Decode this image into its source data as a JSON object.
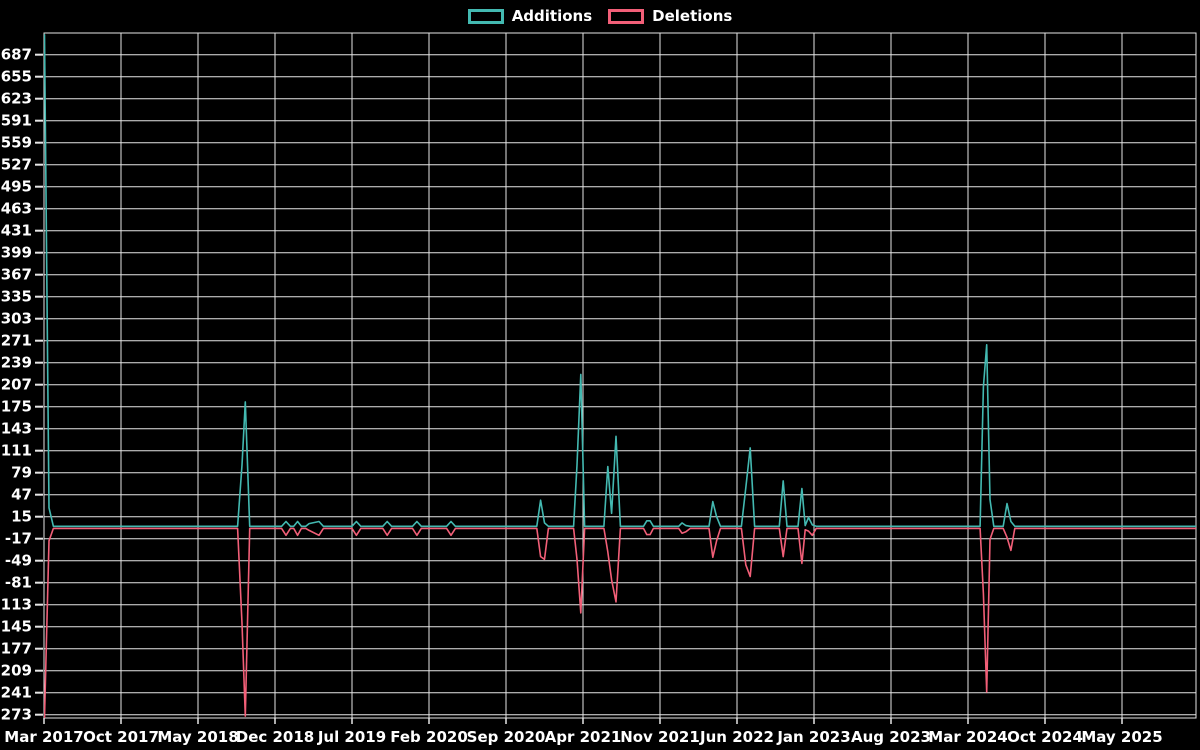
{
  "legend": {
    "items": [
      {
        "label": "Additions",
        "color": "#43b9b1"
      },
      {
        "label": "Deletions",
        "color": "#f25f78"
      }
    ]
  },
  "chart_data": {
    "type": "line",
    "title": "",
    "background": "#000000",
    "grid": true,
    "grid_color": "#e6e6e6",
    "legend_position": "top-center",
    "x_axis": {
      "tick_labels": [
        "Mar 2017",
        "Oct 2017",
        "May 2018",
        "Dec 2018",
        "Jul 2019",
        "Feb 2020",
        "Sep 2020",
        "Apr 2021",
        "Nov 2021",
        "Jun 2022",
        "Jan 2023",
        "Aug 2023",
        "Mar 2024",
        "Oct 2024",
        "May 2025"
      ],
      "tick_month_index": [
        0,
        7,
        14,
        21,
        28,
        35,
        42,
        49,
        56,
        63,
        70,
        77,
        84,
        91,
        98
      ],
      "start_month": "Mar 2017",
      "end_month_index": 104.7
    },
    "y_axis": {
      "tick_values": [
        687,
        655,
        623,
        591,
        559,
        527,
        495,
        463,
        431,
        399,
        367,
        335,
        303,
        271,
        239,
        207,
        175,
        143,
        111,
        79,
        47,
        15,
        -17,
        -49,
        -81,
        -113,
        -145,
        -177,
        -209,
        -241,
        -273
      ],
      "max": 687,
      "min": -273,
      "step": 32
    },
    "series": [
      {
        "name": "Additions",
        "color": "#43b9b1",
        "points": [
          [
            0.05,
            716
          ],
          [
            0.45,
            28
          ],
          [
            0.85,
            1
          ],
          [
            17.6,
            1
          ],
          [
            18.0,
            90
          ],
          [
            18.3,
            182
          ],
          [
            18.7,
            1
          ],
          [
            21.6,
            1
          ],
          [
            22.0,
            8
          ],
          [
            22.4,
            1
          ],
          [
            22.7,
            1
          ],
          [
            23.05,
            8
          ],
          [
            23.4,
            1
          ],
          [
            23.8,
            1
          ],
          [
            24.1,
            5
          ],
          [
            25.0,
            8
          ],
          [
            25.4,
            1
          ],
          [
            28.0,
            1
          ],
          [
            28.4,
            8
          ],
          [
            28.8,
            1
          ],
          [
            30.8,
            1
          ],
          [
            31.2,
            8
          ],
          [
            31.6,
            1
          ],
          [
            33.5,
            1
          ],
          [
            33.9,
            8
          ],
          [
            34.3,
            1
          ],
          [
            36.6,
            1
          ],
          [
            37.0,
            8
          ],
          [
            37.4,
            1
          ],
          [
            44.8,
            1
          ],
          [
            45.15,
            39
          ],
          [
            45.5,
            6
          ],
          [
            45.85,
            1
          ],
          [
            48.15,
            1
          ],
          [
            48.45,
            90
          ],
          [
            48.8,
            222
          ],
          [
            49.15,
            1
          ],
          [
            50.9,
            1
          ],
          [
            51.25,
            88
          ],
          [
            51.6,
            20
          ],
          [
            52.0,
            132
          ],
          [
            52.4,
            1
          ],
          [
            54.5,
            1
          ],
          [
            54.8,
            9
          ],
          [
            55.1,
            9
          ],
          [
            55.4,
            1
          ],
          [
            57.7,
            1
          ],
          [
            58.0,
            6
          ],
          [
            58.35,
            2
          ],
          [
            58.75,
            1
          ],
          [
            60.45,
            1
          ],
          [
            60.8,
            37
          ],
          [
            61.15,
            15
          ],
          [
            61.5,
            1
          ],
          [
            63.4,
            1
          ],
          [
            63.8,
            57
          ],
          [
            64.2,
            115
          ],
          [
            64.6,
            1
          ],
          [
            66.85,
            1
          ],
          [
            67.2,
            67
          ],
          [
            67.55,
            1
          ],
          [
            68.55,
            1
          ],
          [
            68.9,
            56
          ],
          [
            69.2,
            2
          ],
          [
            69.5,
            14
          ],
          [
            69.85,
            3
          ],
          [
            70.2,
            1
          ],
          [
            85.1,
            1
          ],
          [
            85.4,
            204
          ],
          [
            85.7,
            265
          ],
          [
            86.0,
            40
          ],
          [
            86.35,
            1
          ],
          [
            87.2,
            1
          ],
          [
            87.55,
            34
          ],
          [
            87.9,
            8
          ],
          [
            88.25,
            1
          ],
          [
            104.7,
            1
          ]
        ]
      },
      {
        "name": "Deletions",
        "color": "#f25f78",
        "points": [
          [
            0.05,
            -277
          ],
          [
            0.45,
            -20
          ],
          [
            0.85,
            -2
          ],
          [
            17.6,
            -2
          ],
          [
            18.0,
            -140
          ],
          [
            18.3,
            -275
          ],
          [
            18.7,
            -2
          ],
          [
            21.6,
            -2
          ],
          [
            22.0,
            -12
          ],
          [
            22.4,
            -2
          ],
          [
            22.7,
            -2
          ],
          [
            23.05,
            -12
          ],
          [
            23.4,
            -2
          ],
          [
            23.8,
            -2
          ],
          [
            24.1,
            -5
          ],
          [
            25.0,
            -12
          ],
          [
            25.4,
            -2
          ],
          [
            28.0,
            -2
          ],
          [
            28.4,
            -12
          ],
          [
            28.8,
            -2
          ],
          [
            30.8,
            -2
          ],
          [
            31.2,
            -12
          ],
          [
            31.6,
            -2
          ],
          [
            33.5,
            -2
          ],
          [
            33.9,
            -12
          ],
          [
            34.3,
            -2
          ],
          [
            36.6,
            -2
          ],
          [
            37.0,
            -12
          ],
          [
            37.4,
            -2
          ],
          [
            44.8,
            -2
          ],
          [
            45.15,
            -43
          ],
          [
            45.5,
            -47
          ],
          [
            45.85,
            -2
          ],
          [
            48.15,
            -2
          ],
          [
            48.45,
            -47
          ],
          [
            48.8,
            -125
          ],
          [
            49.15,
            -2
          ],
          [
            50.9,
            -2
          ],
          [
            51.25,
            -36
          ],
          [
            51.6,
            -77
          ],
          [
            52.0,
            -109
          ],
          [
            52.4,
            -2
          ],
          [
            54.5,
            -2
          ],
          [
            54.8,
            -11
          ],
          [
            55.1,
            -11
          ],
          [
            55.4,
            -2
          ],
          [
            57.7,
            -2
          ],
          [
            58.0,
            -9
          ],
          [
            58.35,
            -7
          ],
          [
            58.75,
            -2
          ],
          [
            60.45,
            -2
          ],
          [
            60.8,
            -44
          ],
          [
            61.15,
            -20
          ],
          [
            61.5,
            -2
          ],
          [
            63.4,
            -2
          ],
          [
            63.8,
            -55
          ],
          [
            64.2,
            -72
          ],
          [
            64.6,
            -2
          ],
          [
            66.85,
            -2
          ],
          [
            67.2,
            -43
          ],
          [
            67.55,
            -2
          ],
          [
            68.55,
            -2
          ],
          [
            68.9,
            -53
          ],
          [
            69.2,
            -4
          ],
          [
            69.5,
            -6
          ],
          [
            69.85,
            -12
          ],
          [
            70.2,
            -2
          ],
          [
            85.1,
            -2
          ],
          [
            85.4,
            -97
          ],
          [
            85.7,
            -240
          ],
          [
            86.0,
            -18
          ],
          [
            86.35,
            -2
          ],
          [
            87.2,
            -2
          ],
          [
            87.55,
            -15
          ],
          [
            87.9,
            -34
          ],
          [
            88.25,
            -2
          ],
          [
            104.7,
            -2
          ]
        ]
      }
    ]
  }
}
